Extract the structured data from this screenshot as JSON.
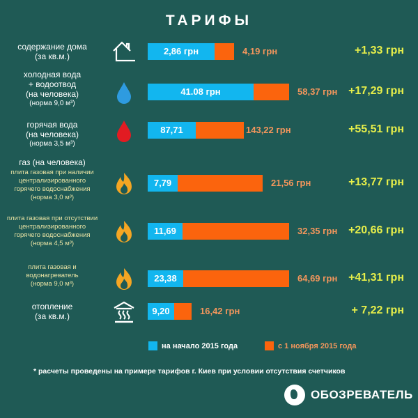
{
  "title": "ТАРИФЫ",
  "colors": {
    "background": "#1f5a55",
    "old": "#12b6ef",
    "new": "#fb640d",
    "diff": "#e6ee4a"
  },
  "chart_data": {
    "type": "bar",
    "title": "ТАРИФЫ",
    "series": [
      {
        "name": "на начало 2015 года",
        "values": [
          2.86,
          41.08,
          87.71,
          7.79,
          11.69,
          23.38,
          9.2
        ]
      },
      {
        "name": "с 1 ноября 2015 года",
        "values": [
          4.19,
          58.37,
          143.22,
          21.56,
          32.35,
          64.69,
          16.42
        ]
      }
    ],
    "categories": [
      "содержание дома",
      "холодная вода + водоотвод",
      "горячая вода",
      "газ: плита при наличии ЦГВ",
      "газ: плита при отсутствии ЦГВ",
      "газ: плита и водонагреватель",
      "отопление"
    ],
    "rows": [
      {
        "lines": [
          "содержание дома",
          "(за кв.м.)"
        ],
        "old": "2,86 грн",
        "new": "4,19 грн",
        "diff": "+1,33 грн",
        "icon": "house-icon"
      },
      {
        "lines": [
          "холодная вода",
          "+ водоотвод",
          "(на человека)"
        ],
        "small": "(норма 9,0 м³)",
        "old": "41.08 грн",
        "new": "58,37 грн",
        "diff": "+17,29 грн",
        "icon": "water-drop-icon"
      },
      {
        "lines": [
          "горячая вода",
          "(на человека)"
        ],
        "small": "(норма 3,5 м³)",
        "old": "87,71",
        "new": "143,22 грн",
        "diff": "+55,51 грн",
        "icon": "hot-water-drop-icon"
      },
      {
        "header": "газ (на человека)",
        "ylines": [
          "плита газовая при наличии",
          "централизированного",
          "горячего водоснабжения",
          "(норма 3,0 м³)"
        ],
        "old": "7,79",
        "new": "21,56 грн",
        "diff": "+13,77 грн",
        "icon": "flame-icon"
      },
      {
        "ylines": [
          "плита газовая при отсутствии",
          "централизированного",
          "горячего водоснабжения",
          "(норма 4,5 м³)"
        ],
        "old": "11,69",
        "new": "32,35 грн",
        "diff": "+20,66 грн",
        "icon": "flame-icon"
      },
      {
        "ylines": [
          "плита газовая и",
          "водонагреватель",
          "(норма 9,0 м³)"
        ],
        "old": "23,38",
        "new": "64,69 грн",
        "diff": "+41,31 грн",
        "icon": "flame-icon"
      },
      {
        "lines": [
          "отопление",
          "(за кв.м.)"
        ],
        "old": "9,20",
        "new": "16,42 грн",
        "diff": "+ 7,22 грн",
        "icon": "heating-icon"
      }
    ],
    "legend": [
      "на начало 2015 года",
      "с 1 ноября 2015 года"
    ],
    "legend_position": "bottom"
  },
  "note": "* расчеты проведены на примере тарифов г. Киев при условии отсутствия счетчиков",
  "logo": "ОБОЗРЕВАТЕЛЬ"
}
